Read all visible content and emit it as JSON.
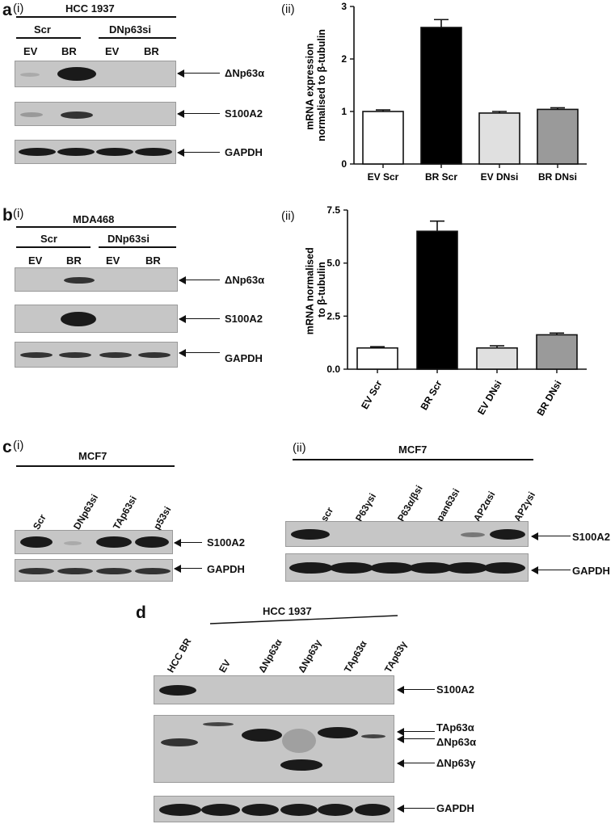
{
  "panel_a": {
    "letter": "a",
    "sub_i": "(i)",
    "sub_ii": "(ii)",
    "cell_line": "HCC 1937",
    "group_scr": "Scr",
    "group_dn": "DNp63si",
    "lanes": [
      "EV",
      "BR",
      "EV",
      "BR"
    ],
    "bands": [
      "ΔNp63α",
      "S100A2",
      "GAPDH"
    ]
  },
  "panel_b": {
    "letter": "b",
    "sub_i": "(i)",
    "sub_ii": "(ii)",
    "cell_line": "MDA468",
    "group_scr": "Scr",
    "group_dn": "DNp63si",
    "lanes": [
      "EV",
      "BR",
      "EV",
      "BR"
    ],
    "bands": [
      "ΔNp63α",
      "S100A2",
      "GAPDH"
    ]
  },
  "panel_c": {
    "letter": "c",
    "sub_i": "(i)",
    "sub_ii": "(ii)",
    "cell_line_i": "MCF7",
    "cell_line_ii": "MCF7",
    "lanes_i": [
      "Scr",
      "DNp63si",
      "TAp63si",
      "p53si"
    ],
    "lanes_ii": [
      "scr",
      "P63γsi",
      "P63α/βsi",
      "pan63si",
      "AP2αsi",
      "AP2γsi"
    ],
    "bands": [
      "S100A2",
      "GAPDH"
    ]
  },
  "panel_d": {
    "letter": "d",
    "cell_line": "HCC 1937",
    "lanes": [
      "HCC BR",
      "EV",
      "ΔNp63α",
      "ΔNp63γ",
      "TAp63α",
      "TAp63γ"
    ],
    "bands": [
      "S100A2",
      "TAp63α",
      "ΔNp63α",
      "ΔNp63γ",
      "GAPDH"
    ]
  },
  "chart_data": [
    {
      "type": "bar",
      "categories": [
        "EV Scr",
        "BR Scr",
        "EV DNsi",
        "BR DNsi"
      ],
      "values": [
        1.0,
        2.6,
        0.97,
        1.04
      ],
      "errors": [
        0.03,
        0.15,
        0.03,
        0.03
      ],
      "colors": [
        "#ffffff",
        "#000000",
        "#e0e0e0",
        "#9a9a9a"
      ],
      "ylabel": "mRNA expression normalised to β-tubulin",
      "ylim": [
        0,
        3
      ],
      "yticks": [
        0,
        1,
        2,
        3
      ],
      "ytick_labels": [
        "0",
        "1",
        "2",
        "3"
      ]
    },
    {
      "type": "bar",
      "categories": [
        "EV Scr",
        "BR Scr",
        "EV DNsi",
        "BR DNsi"
      ],
      "values": [
        1.0,
        6.5,
        1.0,
        1.62
      ],
      "errors": [
        0.06,
        0.48,
        0.1,
        0.08
      ],
      "colors": [
        "#ffffff",
        "#000000",
        "#e0e0e0",
        "#9a9a9a"
      ],
      "ylabel": "mRNA normalised to β-tubulin",
      "ylim": [
        0,
        7.5
      ],
      "yticks": [
        0,
        2.5,
        5.0,
        7.5
      ],
      "ytick_labels": [
        "0.0",
        "2.5",
        "5.0",
        "7.5"
      ]
    }
  ]
}
